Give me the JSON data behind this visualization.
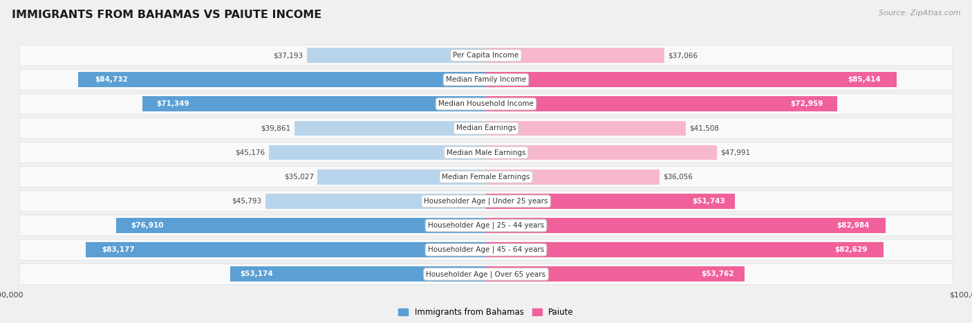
{
  "title": "IMMIGRANTS FROM BAHAMAS VS PAIUTE INCOME",
  "source": "Source: ZipAtlas.com",
  "categories": [
    "Per Capita Income",
    "Median Family Income",
    "Median Household Income",
    "Median Earnings",
    "Median Male Earnings",
    "Median Female Earnings",
    "Householder Age | Under 25 years",
    "Householder Age | 25 - 44 years",
    "Householder Age | 45 - 64 years",
    "Householder Age | Over 65 years"
  ],
  "bahamas_values": [
    37193,
    84732,
    71349,
    39861,
    45176,
    35027,
    45793,
    76910,
    83177,
    53174
  ],
  "paiute_values": [
    37066,
    85414,
    72959,
    41508,
    47991,
    36056,
    51743,
    82984,
    82629,
    53762
  ],
  "bahamas_color_light": "#b8d4eb",
  "bahamas_color_dark": "#5b9fd4",
  "paiute_color_light": "#f7b8ce",
  "paiute_color_dark": "#f0609a",
  "threshold": 50000,
  "max_val": 100000,
  "legend_bahamas": "Immigrants from Bahamas",
  "legend_paiute": "Paiute",
  "bg_color": "#f0f0f0",
  "row_bg": "#f9f9f9",
  "row_border": "#dddddd",
  "label_dark": "#444444",
  "label_white": "#ffffff"
}
